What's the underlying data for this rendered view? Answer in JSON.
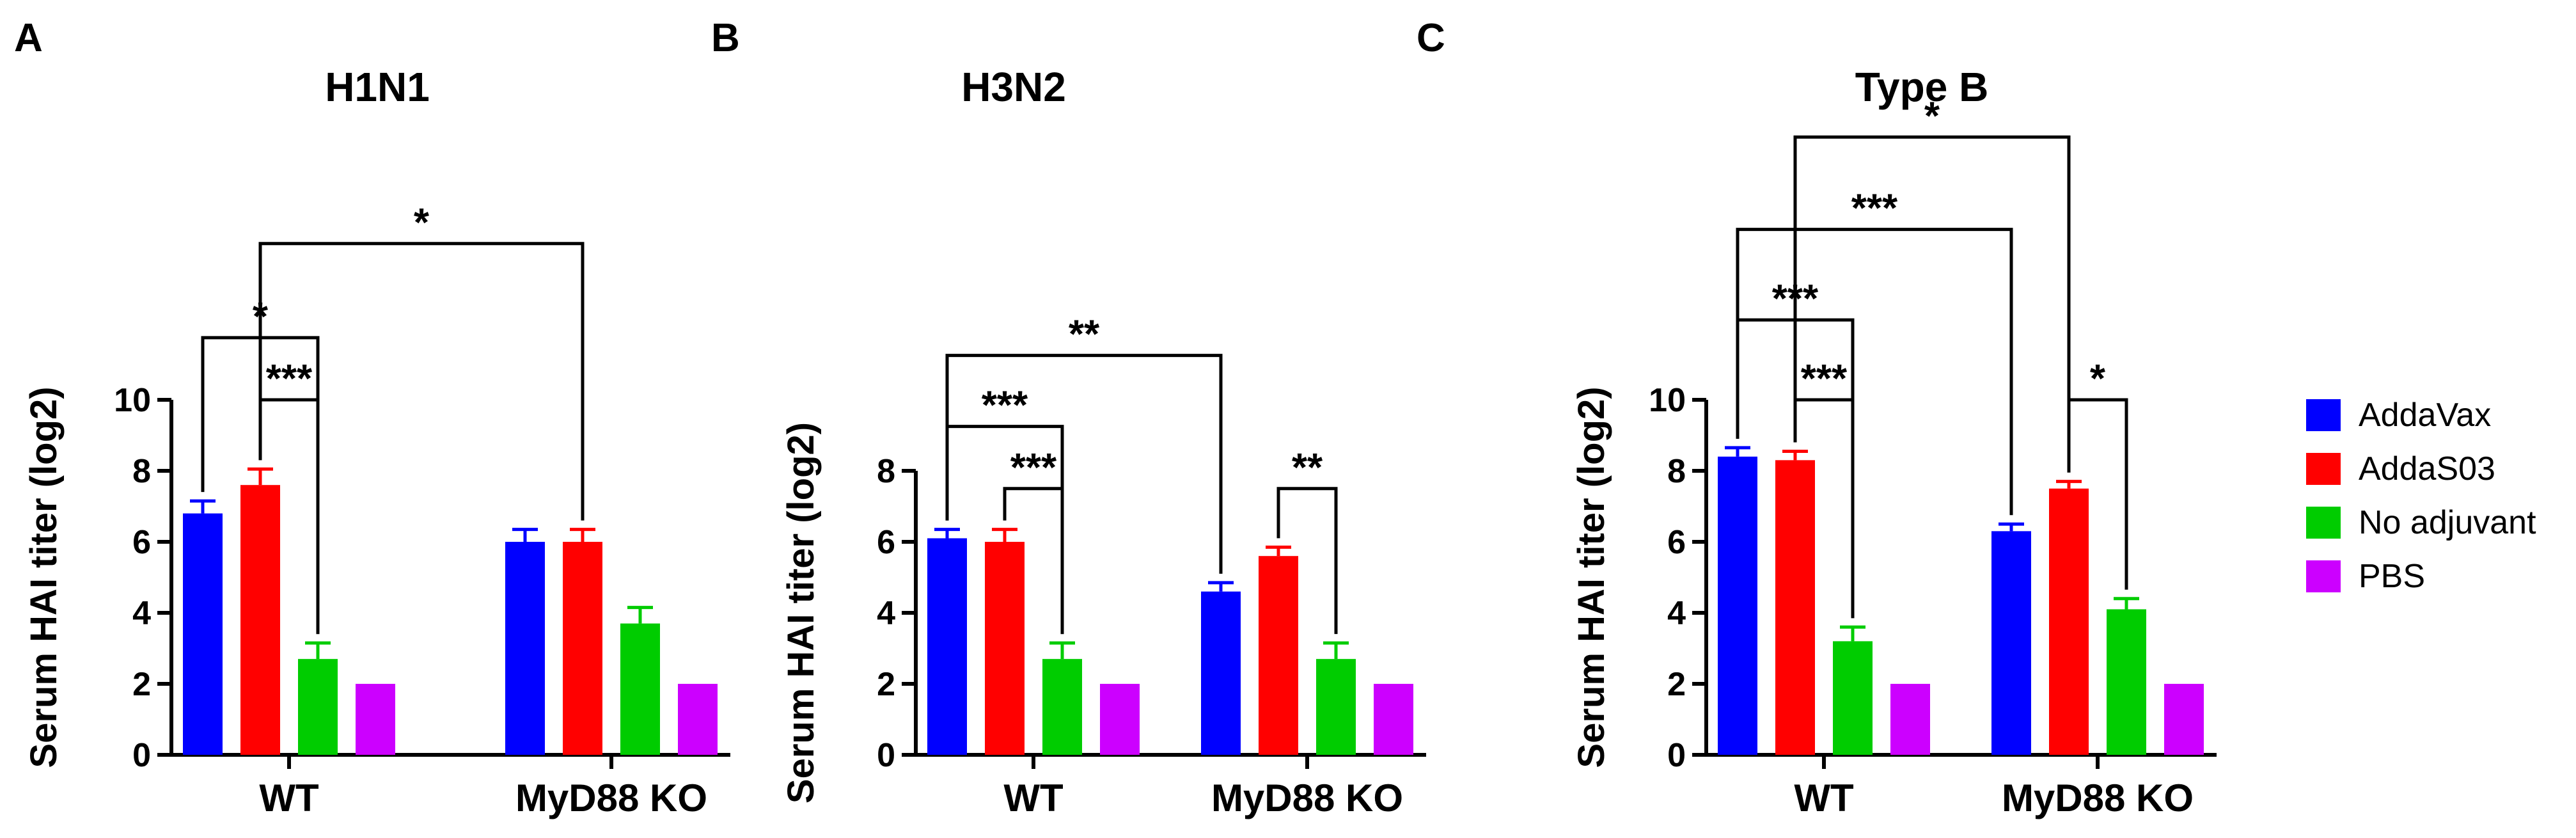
{
  "colors": {
    "AddaVax": "#0000ff",
    "AddaS03": "#ff0000",
    "No adjuvant": "#00cc00",
    "PBS": "#cc00ff"
  },
  "legend": [
    "AddaVax",
    "AddaS03",
    "No adjuvant",
    "PBS"
  ],
  "chart_data": [
    {
      "panel": "A",
      "type": "bar",
      "title": "H1N1",
      "ylabel": "Serum HAI titer (log2)",
      "xlabel": "",
      "ylim": [
        0,
        10
      ],
      "yticks": [
        0,
        2,
        4,
        6,
        8,
        10
      ],
      "categories": [
        "WT",
        "MyD88 KO"
      ],
      "series": [
        {
          "name": "AddaVax",
          "values": [
            6.8,
            6.0
          ],
          "errors": [
            0.35,
            0.35
          ]
        },
        {
          "name": "AddaS03",
          "values": [
            7.6,
            6.0
          ],
          "errors": [
            0.45,
            0.35
          ]
        },
        {
          "name": "No adjuvant",
          "values": [
            2.7,
            3.7
          ],
          "errors": [
            0.45,
            0.45
          ]
        },
        {
          "name": "PBS",
          "values": [
            2.0,
            2.0
          ],
          "errors": [
            0,
            0
          ]
        }
      ],
      "comparisons": [
        {
          "from": [
            0,
            1
          ],
          "to": [
            0,
            2
          ],
          "label": "***",
          "level": 10.0
        },
        {
          "from": [
            0,
            0
          ],
          "to": [
            0,
            2
          ],
          "label": "*",
          "level": 11.75
        },
        {
          "from": [
            0,
            1
          ],
          "to": [
            1,
            1
          ],
          "label": "*",
          "level": 14.4
        }
      ]
    },
    {
      "panel": "B",
      "type": "bar",
      "title": "H3N2",
      "ylabel": "Serum HAI titer (log2)",
      "xlabel": "",
      "ylim": [
        0,
        8
      ],
      "yticks": [
        0,
        2,
        4,
        6,
        8
      ],
      "categories": [
        "WT",
        "MyD88 KO"
      ],
      "series": [
        {
          "name": "AddaVax",
          "values": [
            6.1,
            4.6
          ],
          "errors": [
            0.25,
            0.25
          ]
        },
        {
          "name": "AddaS03",
          "values": [
            6.0,
            5.6
          ],
          "errors": [
            0.35,
            0.25
          ]
        },
        {
          "name": "No adjuvant",
          "values": [
            2.7,
            2.7
          ],
          "errors": [
            0.45,
            0.45
          ]
        },
        {
          "name": "PBS",
          "values": [
            2.0,
            2.0
          ],
          "errors": [
            0,
            0
          ]
        }
      ],
      "comparisons": [
        {
          "from": [
            0,
            1
          ],
          "to": [
            0,
            2
          ],
          "label": "***",
          "level": 7.5
        },
        {
          "from": [
            1,
            1
          ],
          "to": [
            1,
            2
          ],
          "label": "**",
          "level": 7.5
        },
        {
          "from": [
            0,
            0
          ],
          "to": [
            0,
            2
          ],
          "label": "***",
          "level": 9.25
        },
        {
          "from": [
            0,
            0
          ],
          "to": [
            1,
            0
          ],
          "label": "**",
          "level": 11.25
        }
      ]
    },
    {
      "panel": "C",
      "type": "bar",
      "title": "Type B",
      "ylabel": "Serum HAI titer (log2)",
      "xlabel": "",
      "ylim": [
        0,
        10
      ],
      "yticks": [
        0,
        2,
        4,
        6,
        8,
        10
      ],
      "categories": [
        "WT",
        "MyD88 KO"
      ],
      "series": [
        {
          "name": "AddaVax",
          "values": [
            8.4,
            6.3
          ],
          "errors": [
            0.25,
            0.2
          ]
        },
        {
          "name": "AddaS03",
          "values": [
            8.3,
            7.5
          ],
          "errors": [
            0.25,
            0.2
          ]
        },
        {
          "name": "No adjuvant",
          "values": [
            3.2,
            4.1
          ],
          "errors": [
            0.4,
            0.3
          ]
        },
        {
          "name": "PBS",
          "values": [
            2.0,
            2.0
          ],
          "errors": [
            0,
            0
          ]
        }
      ],
      "comparisons": [
        {
          "from": [
            0,
            1
          ],
          "to": [
            0,
            2
          ],
          "label": "***",
          "level": 10.0
        },
        {
          "from": [
            1,
            1
          ],
          "to": [
            1,
            2
          ],
          "label": "*",
          "level": 10.0
        },
        {
          "from": [
            0,
            0
          ],
          "to": [
            0,
            2
          ],
          "label": "***",
          "level": 12.25
        },
        {
          "from": [
            0,
            0
          ],
          "to": [
            1,
            0
          ],
          "label": "***",
          "level": 14.8
        },
        {
          "from": [
            0,
            1
          ],
          "to": [
            1,
            1
          ],
          "label": "*",
          "level": 17.4
        }
      ]
    }
  ]
}
